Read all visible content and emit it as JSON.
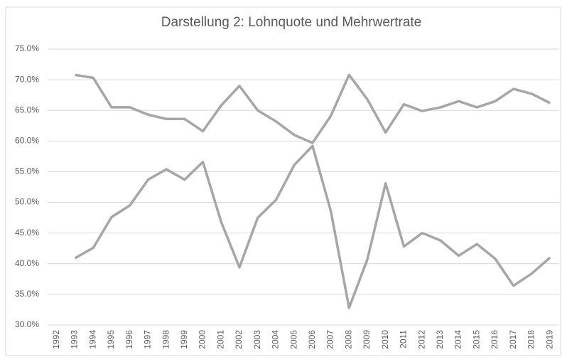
{
  "chart_data": {
    "type": "line",
    "title": "Darstellung 2: Lohnquote und Mehrwertrate",
    "categories": [
      "1992",
      "1993",
      "1994",
      "1995",
      "1996",
      "1997",
      "1998",
      "1999",
      "2000",
      "2001",
      "2002",
      "2003",
      "2004",
      "2005",
      "2006",
      "2007",
      "2008",
      "2009",
      "2010",
      "2011",
      "2012",
      "2013",
      "2014",
      "2015",
      "2016",
      "2017",
      "2018",
      "2019"
    ],
    "series": [
      {
        "color": "#a6a6a6",
        "values": [
          null,
          70.8,
          70.3,
          65.5,
          65.5,
          64.3,
          63.6,
          63.6,
          61.6,
          65.8,
          69.0,
          65.0,
          63.2,
          61.0,
          59.7,
          64.1,
          70.8,
          66.8,
          61.4,
          66.0,
          64.9,
          65.5,
          66.5,
          65.5,
          66.5,
          68.5,
          67.7,
          66.2
        ]
      },
      {
        "color": "#a6a6a6",
        "values": [
          null,
          40.9,
          42.6,
          47.6,
          49.5,
          53.7,
          55.4,
          53.7,
          56.6,
          46.8,
          39.4,
          47.5,
          50.4,
          56.1,
          59.2,
          48.6,
          32.8,
          40.7,
          53.1,
          42.8,
          45.0,
          43.8,
          41.3,
          43.2,
          40.8,
          36.4,
          38.4,
          41.0
        ]
      }
    ],
    "ylim": [
      30,
      75
    ],
    "yticks": [
      {
        "value": 30,
        "label": "30.0%"
      },
      {
        "value": 35,
        "label": "35.0%"
      },
      {
        "value": 40,
        "label": "40.0%"
      },
      {
        "value": 45,
        "label": "45.0%"
      },
      {
        "value": 50,
        "label": "50.0%"
      },
      {
        "value": 55,
        "label": "55.0%"
      },
      {
        "value": 60,
        "label": "60.0%"
      },
      {
        "value": 65,
        "label": "65.0%"
      },
      {
        "value": 70,
        "label": "70.0%"
      },
      {
        "value": 75,
        "label": "75.0%"
      }
    ],
    "grid": true
  }
}
